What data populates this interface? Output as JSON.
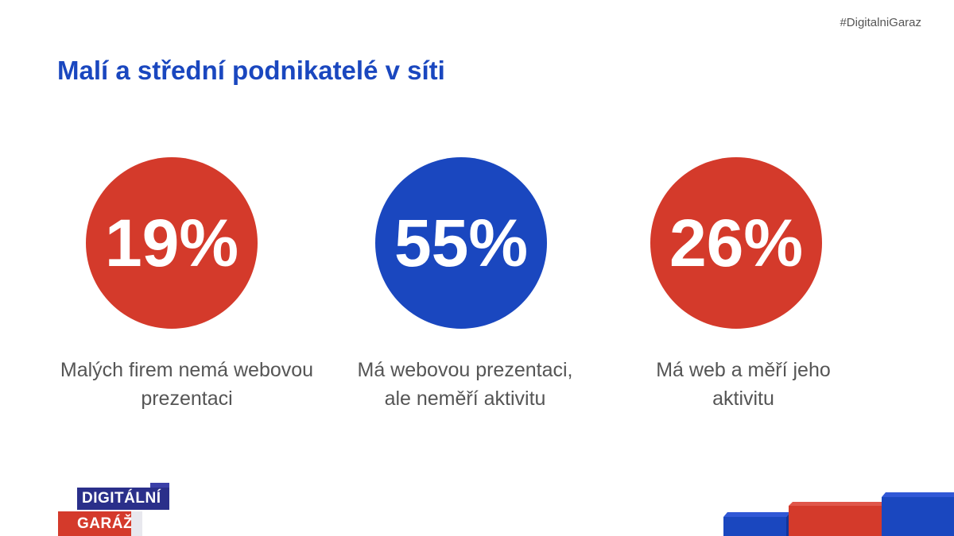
{
  "hashtag": "#DigitalniGaraz",
  "title": "Malí a střední podnikatelé v síti",
  "stats": [
    {
      "value": "19%",
      "label": "Malých firem nemá webovou prezentaci",
      "color": "#d43a2b"
    },
    {
      "value": "55%",
      "label": "Má webovou prezentaci, ale neměří aktivitu",
      "color": "#1a47bf"
    },
    {
      "value": "26%",
      "label": "Má web a měří jeho aktivitu",
      "color": "#d43a2b"
    }
  ],
  "logo": {
    "line1": "DIGITÁLNÍ",
    "line2": "GARÁŽ"
  },
  "colors": {
    "brand_blue": "#1a47bf",
    "brand_red": "#d43a2b"
  }
}
